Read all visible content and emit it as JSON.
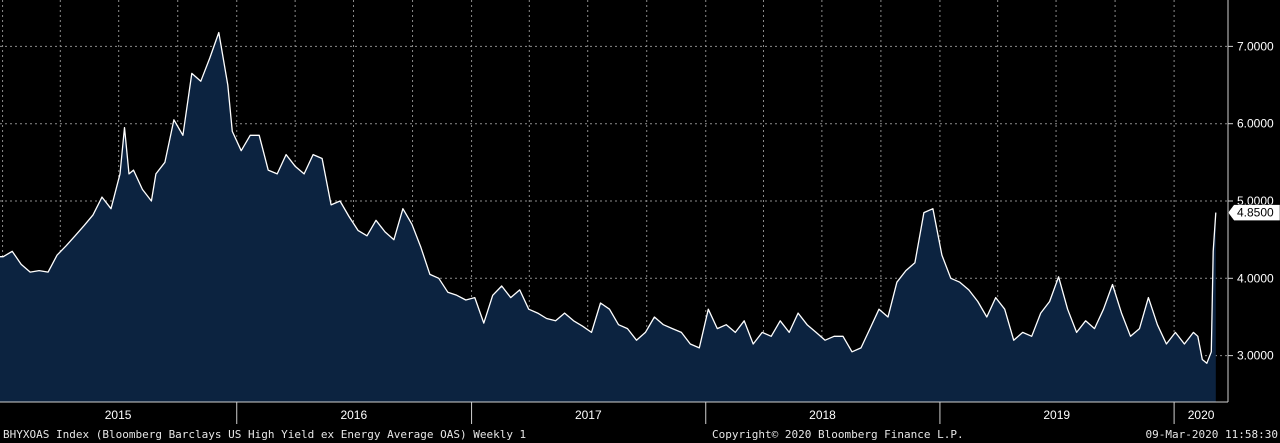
{
  "chart_data": {
    "type": "area",
    "title": "",
    "xlabel": "",
    "ylabel": "",
    "ylim": [
      2.4,
      7.6
    ],
    "x_range": [
      "2014-12-28",
      "2020-03-25"
    ],
    "y_ticks": [
      {
        "value": 3.0,
        "label": "3.0000"
      },
      {
        "value": 4.0,
        "label": "4.0000"
      },
      {
        "value": 5.0,
        "label": "5.0000"
      },
      {
        "value": 6.0,
        "label": "6.0000"
      },
      {
        "value": 7.0,
        "label": "7.0000"
      }
    ],
    "x_ticks": [
      {
        "label": "2015",
        "start": "2014-12-28",
        "end": "2015-12-31"
      },
      {
        "label": "2016",
        "start": "2016-01-01",
        "end": "2016-12-31"
      },
      {
        "label": "2017",
        "start": "2017-01-01",
        "end": "2017-12-31"
      },
      {
        "label": "2018",
        "start": "2018-01-01",
        "end": "2018-12-31"
      },
      {
        "label": "2019",
        "start": "2019-01-01",
        "end": "2019-12-31"
      },
      {
        "label": "2020",
        "start": "2020-01-01",
        "end": "2020-03-25"
      }
    ],
    "last_value": {
      "value": 4.85,
      "label": "4.8500"
    },
    "grid": true,
    "colors": {
      "line": "#ffffff",
      "fill": "#0c2340",
      "background": "#000000",
      "grid": "#8c8c8c",
      "last_value_box": "#ffffff"
    },
    "series": [
      {
        "points": [
          [
            "2015-01-02",
            4.28
          ],
          [
            "2015-01-16",
            4.35
          ],
          [
            "2015-01-30",
            4.18
          ],
          [
            "2015-02-13",
            4.08
          ],
          [
            "2015-02-27",
            4.1
          ],
          [
            "2015-03-13",
            4.08
          ],
          [
            "2015-03-27",
            4.3
          ],
          [
            "2015-04-10",
            4.42
          ],
          [
            "2015-04-24",
            4.55
          ],
          [
            "2015-05-08",
            4.68
          ],
          [
            "2015-05-22",
            4.82
          ],
          [
            "2015-06-05",
            5.05
          ],
          [
            "2015-06-19",
            4.9
          ],
          [
            "2015-07-03",
            5.35
          ],
          [
            "2015-07-10",
            5.95
          ],
          [
            "2015-07-17",
            5.35
          ],
          [
            "2015-07-24",
            5.4
          ],
          [
            "2015-08-07",
            5.15
          ],
          [
            "2015-08-21",
            5.0
          ],
          [
            "2015-08-28",
            5.35
          ],
          [
            "2015-09-11",
            5.5
          ],
          [
            "2015-09-25",
            6.05
          ],
          [
            "2015-10-09",
            5.85
          ],
          [
            "2015-10-23",
            6.65
          ],
          [
            "2015-11-06",
            6.55
          ],
          [
            "2015-11-20",
            6.85
          ],
          [
            "2015-12-04",
            7.18
          ],
          [
            "2015-12-18",
            6.5
          ],
          [
            "2015-12-25",
            5.9
          ],
          [
            "2016-01-08",
            5.65
          ],
          [
            "2016-01-22",
            5.85
          ],
          [
            "2016-02-05",
            5.85
          ],
          [
            "2016-02-19",
            5.4
          ],
          [
            "2016-03-04",
            5.35
          ],
          [
            "2016-03-18",
            5.6
          ],
          [
            "2016-04-01",
            5.45
          ],
          [
            "2016-04-15",
            5.35
          ],
          [
            "2016-04-29",
            5.6
          ],
          [
            "2016-05-13",
            5.55
          ],
          [
            "2016-05-27",
            4.95
          ],
          [
            "2016-06-10",
            5.0
          ],
          [
            "2016-06-24",
            4.8
          ],
          [
            "2016-07-08",
            4.62
          ],
          [
            "2016-07-22",
            4.55
          ],
          [
            "2016-08-05",
            4.75
          ],
          [
            "2016-08-19",
            4.6
          ],
          [
            "2016-09-02",
            4.5
          ],
          [
            "2016-09-16",
            4.9
          ],
          [
            "2016-09-30",
            4.7
          ],
          [
            "2016-10-14",
            4.4
          ],
          [
            "2016-10-28",
            4.05
          ],
          [
            "2016-11-11",
            4.0
          ],
          [
            "2016-11-25",
            3.82
          ],
          [
            "2016-12-09",
            3.78
          ],
          [
            "2016-12-23",
            3.72
          ],
          [
            "2017-01-06",
            3.75
          ],
          [
            "2017-01-20",
            3.42
          ],
          [
            "2017-02-03",
            3.78
          ],
          [
            "2017-02-17",
            3.9
          ],
          [
            "2017-03-03",
            3.75
          ],
          [
            "2017-03-17",
            3.85
          ],
          [
            "2017-03-31",
            3.6
          ],
          [
            "2017-04-14",
            3.55
          ],
          [
            "2017-04-28",
            3.48
          ],
          [
            "2017-05-12",
            3.45
          ],
          [
            "2017-05-26",
            3.55
          ],
          [
            "2017-06-09",
            3.45
          ],
          [
            "2017-06-23",
            3.38
          ],
          [
            "2017-07-07",
            3.3
          ],
          [
            "2017-07-21",
            3.68
          ],
          [
            "2017-08-04",
            3.6
          ],
          [
            "2017-08-18",
            3.4
          ],
          [
            "2017-09-01",
            3.35
          ],
          [
            "2017-09-15",
            3.2
          ],
          [
            "2017-09-29",
            3.3
          ],
          [
            "2017-10-13",
            3.5
          ],
          [
            "2017-10-27",
            3.4
          ],
          [
            "2017-11-10",
            3.35
          ],
          [
            "2017-11-24",
            3.3
          ],
          [
            "2017-12-08",
            3.15
          ],
          [
            "2017-12-22",
            3.1
          ],
          [
            "2018-01-05",
            3.6
          ],
          [
            "2018-01-19",
            3.35
          ],
          [
            "2018-02-02",
            3.4
          ],
          [
            "2018-02-16",
            3.3
          ],
          [
            "2018-03-02",
            3.45
          ],
          [
            "2018-03-16",
            3.15
          ],
          [
            "2018-03-30",
            3.3
          ],
          [
            "2018-04-13",
            3.25
          ],
          [
            "2018-04-27",
            3.45
          ],
          [
            "2018-05-11",
            3.3
          ],
          [
            "2018-05-25",
            3.55
          ],
          [
            "2018-06-08",
            3.4
          ],
          [
            "2018-06-22",
            3.3
          ],
          [
            "2018-07-06",
            3.2
          ],
          [
            "2018-07-20",
            3.25
          ],
          [
            "2018-08-03",
            3.25
          ],
          [
            "2018-08-17",
            3.05
          ],
          [
            "2018-08-31",
            3.1
          ],
          [
            "2018-09-14",
            3.35
          ],
          [
            "2018-09-28",
            3.6
          ],
          [
            "2018-10-12",
            3.5
          ],
          [
            "2018-10-26",
            3.95
          ],
          [
            "2018-11-09",
            4.1
          ],
          [
            "2018-11-23",
            4.2
          ],
          [
            "2018-12-07",
            4.85
          ],
          [
            "2018-12-21",
            4.9
          ],
          [
            "2019-01-04",
            4.3
          ],
          [
            "2019-01-18",
            4.0
          ],
          [
            "2019-02-01",
            3.95
          ],
          [
            "2019-02-15",
            3.85
          ],
          [
            "2019-03-01",
            3.7
          ],
          [
            "2019-03-15",
            3.5
          ],
          [
            "2019-03-29",
            3.75
          ],
          [
            "2019-04-12",
            3.6
          ],
          [
            "2019-04-26",
            3.2
          ],
          [
            "2019-05-10",
            3.3
          ],
          [
            "2019-05-24",
            3.25
          ],
          [
            "2019-06-07",
            3.55
          ],
          [
            "2019-06-21",
            3.7
          ],
          [
            "2019-07-05",
            4.02
          ],
          [
            "2019-07-19",
            3.6
          ],
          [
            "2019-08-02",
            3.3
          ],
          [
            "2019-08-16",
            3.45
          ],
          [
            "2019-08-30",
            3.35
          ],
          [
            "2019-09-13",
            3.6
          ],
          [
            "2019-09-27",
            3.92
          ],
          [
            "2019-10-11",
            3.55
          ],
          [
            "2019-10-25",
            3.25
          ],
          [
            "2019-11-08",
            3.35
          ],
          [
            "2019-11-22",
            3.75
          ],
          [
            "2019-12-06",
            3.4
          ],
          [
            "2019-12-20",
            3.15
          ],
          [
            "2020-01-03",
            3.3
          ],
          [
            "2020-01-17",
            3.15
          ],
          [
            "2020-01-31",
            3.3
          ],
          [
            "2020-02-07",
            3.25
          ],
          [
            "2020-02-14",
            2.95
          ],
          [
            "2020-02-21",
            2.9
          ],
          [
            "2020-02-28",
            3.05
          ],
          [
            "2020-03-02",
            4.35
          ],
          [
            "2020-03-06",
            4.85
          ]
        ]
      }
    ]
  },
  "footer": {
    "ticker": "BHYXOAS Index (Bloomberg Barclays US High Yield ex Energy Average OAS)  Weekly 1",
    "copyright": "Copyright© 2020 Bloomberg Finance L.P.",
    "timestamp": "09-Mar-2020 11:58:30"
  }
}
